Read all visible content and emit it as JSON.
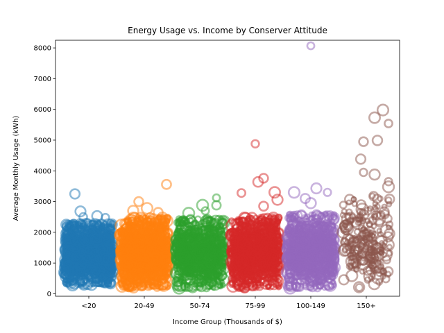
{
  "chart_data": {
    "type": "scatter",
    "title": "Energy Usage vs. Income by Conserver Attitude",
    "xlabel": "Income Group (Thousands of $)",
    "ylabel": "Average Monthly Usage (kWh)",
    "categories": [
      "<20",
      "20-49",
      "50-74",
      "75-99",
      "100-149",
      "150+"
    ],
    "ylim": [
      -80,
      8250
    ],
    "yticks": [
      0,
      1000,
      2000,
      3000,
      4000,
      5000,
      6000,
      7000,
      8000
    ],
    "grid": false,
    "legend": "none",
    "marker": "open circle, size varies",
    "series": [
      {
        "category": "<20",
        "color": "#1f77b4",
        "point_count": 1500,
        "typical_range": [
          300,
          2300
        ],
        "notable_points": [
          [
            -0.25,
            3250
          ],
          [
            -0.15,
            2680
          ],
          [
            0.15,
            2530
          ],
          [
            0.3,
            2480
          ],
          [
            -0.1,
            2500
          ]
        ]
      },
      {
        "category": "20-49",
        "color": "#ff7f0e",
        "point_count": 1500,
        "typical_range": [
          200,
          2500
        ],
        "notable_points": [
          [
            0.4,
            3560
          ],
          [
            -0.1,
            3000
          ],
          [
            0.05,
            2780
          ],
          [
            -0.2,
            2700
          ],
          [
            0.25,
            2650
          ]
        ]
      },
      {
        "category": "50-74",
        "color": "#2ca02c",
        "point_count": 900,
        "typical_range": [
          200,
          2450
        ],
        "notable_points": [
          [
            0.3,
            3120
          ],
          [
            0.05,
            2880
          ],
          [
            0.3,
            2880
          ],
          [
            -0.2,
            2620
          ],
          [
            0.1,
            2700
          ]
        ]
      },
      {
        "category": "75-99",
        "color": "#d62728",
        "point_count": 1200,
        "typical_range": [
          200,
          2500
        ],
        "notable_points": [
          [
            0.0,
            4880
          ],
          [
            0.15,
            3760
          ],
          [
            0.05,
            3640
          ],
          [
            -0.25,
            3280
          ],
          [
            0.35,
            3300
          ],
          [
            0.4,
            3060
          ],
          [
            0.15,
            2850
          ]
        ]
      },
      {
        "category": "100-149",
        "color": "#9467bd",
        "point_count": 1000,
        "typical_range": [
          200,
          2600
        ],
        "notable_points": [
          [
            0.0,
            8070
          ],
          [
            0.1,
            3430
          ],
          [
            -0.3,
            3300
          ],
          [
            0.3,
            3300
          ],
          [
            -0.1,
            3100
          ],
          [
            0.0,
            2950
          ]
        ]
      },
      {
        "category": "150+",
        "color": "#8c564b",
        "point_count": 240,
        "typical_range": [
          200,
          3200
        ],
        "notable_points": [
          [
            0.3,
            5980
          ],
          [
            0.15,
            5730
          ],
          [
            0.4,
            5540
          ],
          [
            0.2,
            4990
          ],
          [
            -0.05,
            4950
          ],
          [
            -0.1,
            4380
          ],
          [
            -0.05,
            3950
          ],
          [
            0.15,
            3880
          ],
          [
            0.4,
            3650
          ],
          [
            0.4,
            3480
          ]
        ]
      }
    ]
  }
}
